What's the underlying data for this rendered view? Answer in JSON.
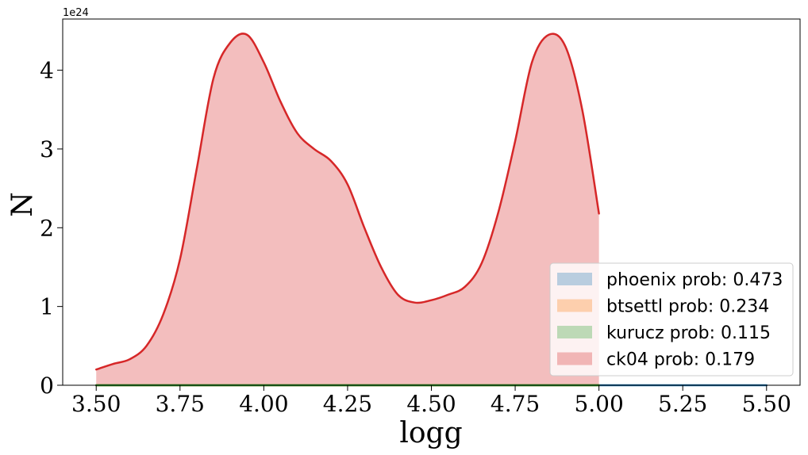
{
  "chart_data": {
    "type": "line",
    "title": "",
    "xlabel": "logg",
    "ylabel": "N",
    "y_offset_label": "1e24",
    "y_scale": 1e+24,
    "xlim": [
      3.4,
      5.6
    ],
    "ylim": [
      0,
      4.65
    ],
    "x_ticks": [
      3.5,
      3.75,
      4.0,
      4.25,
      4.5,
      4.75,
      5.0,
      5.25,
      5.5
    ],
    "x_tick_labels": [
      "3.50",
      "3.75",
      "4.00",
      "4.25",
      "4.50",
      "4.75",
      "5.00",
      "5.25",
      "5.50"
    ],
    "y_ticks": [
      0,
      1,
      2,
      3,
      4
    ],
    "y_tick_labels": [
      "0",
      "1",
      "2",
      "3",
      "4"
    ],
    "grid": false,
    "legend_position": "bottom-right",
    "series": [
      {
        "name": "phoenix prob: 0.473",
        "color": "#1f77b4",
        "fill_alpha": 0.3,
        "x": [
          3.5,
          3.75,
          4.0,
          4.25,
          4.5,
          4.75,
          5.0,
          5.25,
          5.5
        ],
        "values": [
          0,
          0,
          0,
          0,
          0,
          0,
          0,
          0,
          0
        ]
      },
      {
        "name": "btsettl prob: 0.234",
        "color": "#ff7f0e",
        "fill_alpha": 0.3,
        "x": [
          3.5,
          3.75,
          4.0,
          4.25,
          4.5,
          4.75,
          5.0
        ],
        "values": [
          0,
          0,
          0,
          0,
          0,
          0,
          0
        ]
      },
      {
        "name": "kurucz prob: 0.115",
        "color": "#2ca02c",
        "fill_alpha": 0.3,
        "x": [
          3.5,
          3.75,
          4.0,
          4.25,
          4.5,
          4.75,
          5.0
        ],
        "values": [
          0,
          0,
          0,
          0,
          0,
          0,
          0
        ]
      },
      {
        "name": "ck04 prob: 0.179",
        "color": "#d62728",
        "fill_alpha": 0.3,
        "x": [
          3.5,
          3.55,
          3.6,
          3.65,
          3.7,
          3.75,
          3.8,
          3.85,
          3.9,
          3.95,
          4.0,
          4.05,
          4.1,
          4.15,
          4.2,
          4.25,
          4.3,
          4.35,
          4.4,
          4.45,
          4.5,
          4.55,
          4.6,
          4.65,
          4.7,
          4.75,
          4.8,
          4.85,
          4.9,
          4.95,
          5.0
        ],
        "values": [
          0.2,
          0.27,
          0.33,
          0.5,
          0.9,
          1.6,
          2.75,
          3.9,
          4.35,
          4.45,
          4.1,
          3.6,
          3.2,
          3.0,
          2.85,
          2.55,
          2.0,
          1.5,
          1.15,
          1.05,
          1.08,
          1.15,
          1.25,
          1.55,
          2.2,
          3.1,
          4.1,
          4.45,
          4.3,
          3.5,
          2.18
        ]
      }
    ]
  }
}
